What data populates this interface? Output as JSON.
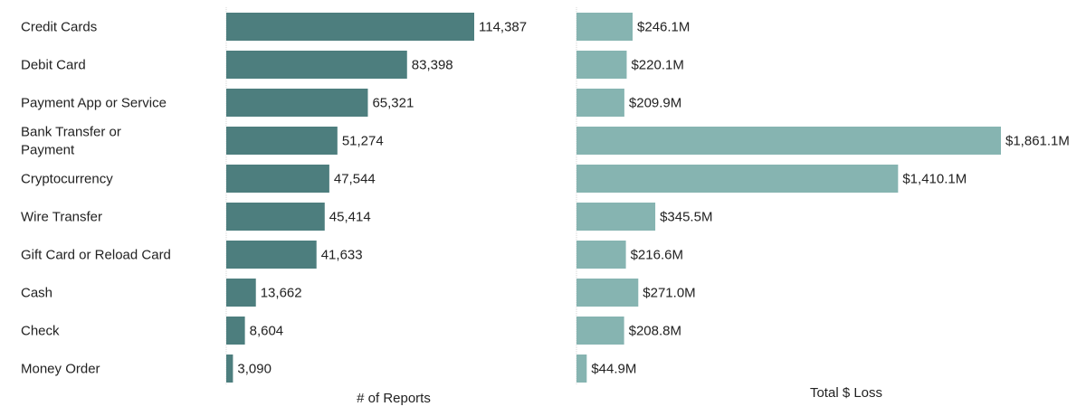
{
  "chart_data": [
    {
      "type": "bar",
      "orientation": "horizontal",
      "title": "",
      "xlabel": "# of Reports",
      "ylabel": "",
      "color": "#4d7e7e",
      "categories": [
        "Credit Cards",
        "Debit Card",
        "Payment App or Service",
        "Bank Transfer or Payment",
        "Cryptocurrency",
        "Wire Transfer",
        "Gift Card or Reload Card",
        "Cash",
        "Check",
        "Money Order"
      ],
      "values": [
        114387,
        83398,
        65321,
        51274,
        47544,
        45414,
        41633,
        13662,
        8604,
        3090
      ],
      "value_labels": [
        "114,387",
        "83,398",
        "65,321",
        "51,274",
        "47,544",
        "45,414",
        "41,633",
        "13,662",
        "8,604",
        "3,090"
      ],
      "xlim": [
        0,
        114387
      ],
      "grid": false
    },
    {
      "type": "bar",
      "orientation": "horizontal",
      "title": "",
      "xlabel": "Total $ Loss",
      "ylabel": "",
      "unit": "$M",
      "color": "#86b4b1",
      "categories": [
        "Credit Cards",
        "Debit Card",
        "Payment App or Service",
        "Bank Transfer or Payment",
        "Cryptocurrency",
        "Wire Transfer",
        "Gift Card or Reload Card",
        "Cash",
        "Check",
        "Money Order"
      ],
      "values": [
        246.1,
        220.1,
        209.9,
        1861.1,
        1410.1,
        345.5,
        216.6,
        271.0,
        208.8,
        44.9
      ],
      "value_labels": [
        "$246.1M",
        "$220.1M",
        "$209.9M",
        "$1,861.1M",
        "$1,410.1M",
        "$345.5M",
        "$216.6M",
        "$271.0M",
        "$208.8M",
        "$44.9M"
      ],
      "xlim": [
        0,
        1861.1
      ],
      "grid": false
    }
  ],
  "category_display": [
    [
      "Credit Cards"
    ],
    [
      "Debit Card"
    ],
    [
      "Payment App or Service"
    ],
    [
      "Bank Transfer or",
      "Payment"
    ],
    [
      "Cryptocurrency"
    ],
    [
      "Wire Transfer"
    ],
    [
      "Gift Card or Reload Card"
    ],
    [
      "Cash"
    ],
    [
      "Check"
    ],
    [
      "Money Order"
    ]
  ]
}
